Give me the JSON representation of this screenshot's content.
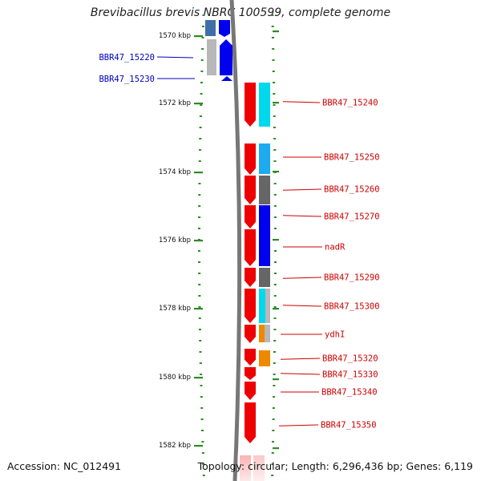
{
  "header": {
    "title": "Brevibacillus brevis NBRC 100599, complete genome"
  },
  "footer": {
    "accession": "Accession: NC_012491",
    "topology": "Topology: circular; Length: 6,296,436 bp; Genes: 6,119"
  },
  "colors": {
    "backbone": "#777777",
    "forward_label": "#0000bb",
    "reverse_label": "#cc0000",
    "tick": "#2e8b22",
    "gene_red": "#ee0000",
    "cog_blue": "#0000ee",
    "cog_cyan": "#00d8ee",
    "cog_skyblue": "#1eaaee",
    "cog_gray": "#666666",
    "cog_lightgray": "#b8b8b8",
    "cog_orange": "#ee8800",
    "cog_steelblue": "#3f6fa8"
  },
  "ticks": [
    "1570 kbp",
    "1572 kbp",
    "1574 kbp",
    "1576 kbp",
    "1578 kbp",
    "1580 kbp",
    "1582 kbp"
  ],
  "labels_forward": [
    "BBR47_15220",
    "BBR47_15230"
  ],
  "labels_reverse": [
    "BBR47_15240",
    "BBR47_15250",
    "BBR47_15260",
    "BBR47_15270",
    "nadR",
    "BBR47_15290",
    "BBR47_15300",
    "ydhI",
    "BBR47_15320",
    "BBR47_15330",
    "BBR47_15340",
    "BBR47_15350"
  ]
}
